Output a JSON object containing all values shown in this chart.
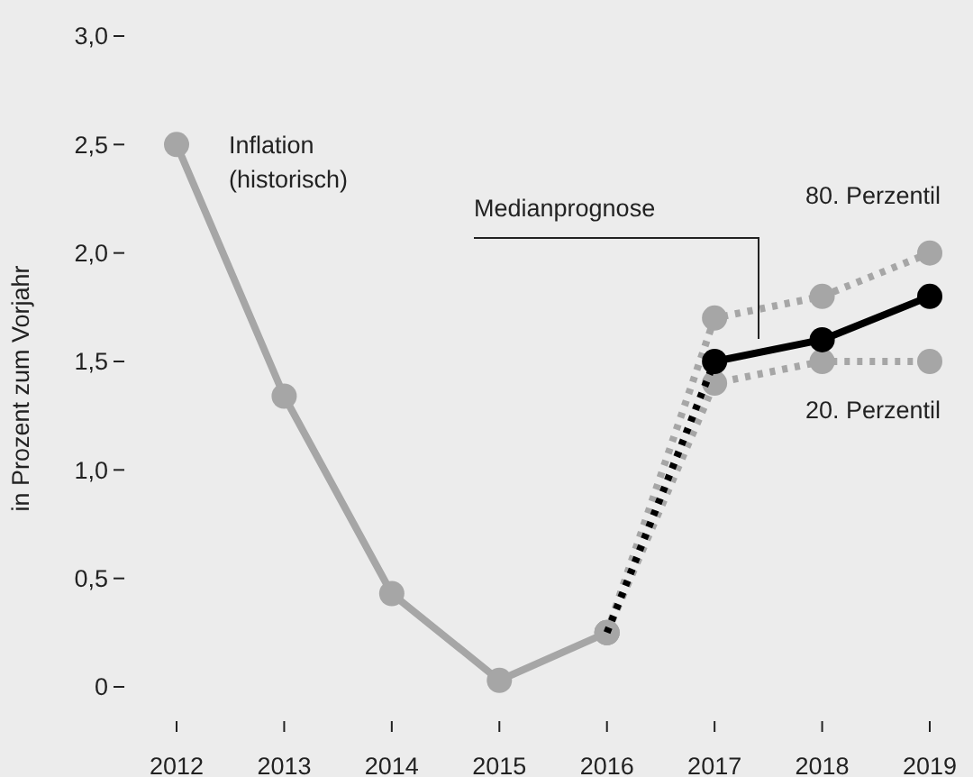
{
  "chart_data": {
    "type": "line",
    "categories": [
      "2012",
      "2013",
      "2014",
      "2015",
      "2016",
      "2017",
      "2018",
      "2019"
    ],
    "ylabel": "in Prozent zum Vorjahr",
    "ylim": [
      0,
      3
    ],
    "yticks": [
      {
        "value": 0,
        "label": "0"
      },
      {
        "value": 0.5,
        "label": "0,5"
      },
      {
        "value": 1,
        "label": "1,0"
      },
      {
        "value": 1.5,
        "label": "1,5"
      },
      {
        "value": 2,
        "label": "2,0"
      },
      {
        "value": 2.5,
        "label": "2,5"
      },
      {
        "value": 3,
        "label": "3,0"
      }
    ],
    "marker": "circle",
    "grid": false,
    "series": [
      {
        "name": "80. Perzentil",
        "color": "#a6a6a6",
        "line_style": "dotted",
        "values": [
          null,
          null,
          null,
          null,
          0.25,
          1.7,
          1.8,
          2.0
        ]
      },
      {
        "name": "20. Perzentil",
        "color": "#a6a6a6",
        "line_style": "dotted",
        "values": [
          null,
          null,
          null,
          null,
          0.25,
          1.4,
          1.5,
          1.5
        ]
      },
      {
        "name": "Inflation (historisch)",
        "color": "#a6a6a6",
        "line_style": "solid",
        "values": [
          2.5,
          1.34,
          0.43,
          0.03,
          0.25,
          null,
          null,
          null
        ]
      },
      {
        "color": "#000000",
        "line_style": "dotted",
        "values": [
          null,
          null,
          null,
          null,
          0.25,
          1.5,
          null,
          null
        ]
      },
      {
        "name": "Medianprognose",
        "color": "#000000",
        "line_style": "solid",
        "values": [
          null,
          null,
          null,
          null,
          null,
          1.5,
          1.6,
          1.8
        ]
      }
    ]
  }
}
